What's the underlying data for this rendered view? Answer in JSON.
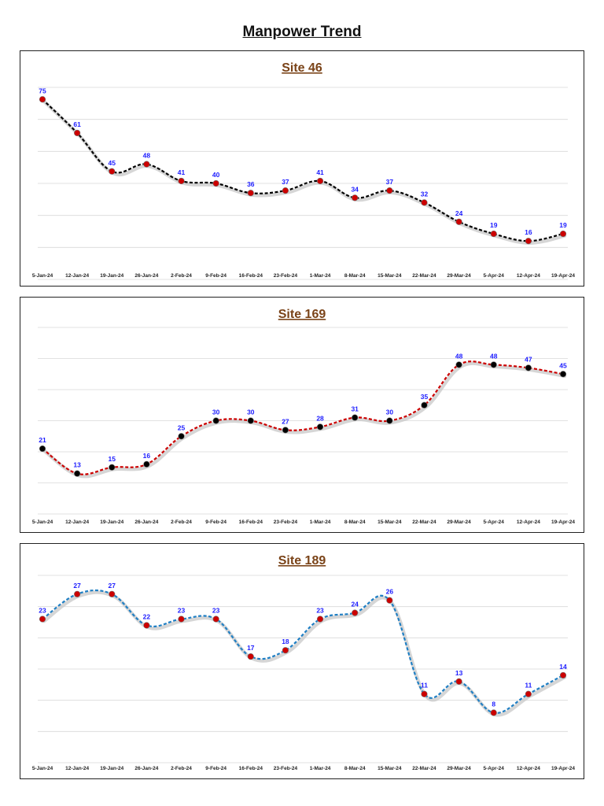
{
  "page": {
    "title": "Manpower Trend"
  },
  "chart_data": [
    {
      "type": "line",
      "title": "Site 46",
      "categories": [
        "5-Jan-24",
        "12-Jan-24",
        "19-Jan-24",
        "26-Jan-24",
        "2-Feb-24",
        "9-Feb-24",
        "16-Feb-24",
        "23-Feb-24",
        "1-Mar-24",
        "8-Mar-24",
        "15-Mar-24",
        "22-Mar-24",
        "29-Mar-24",
        "5-Apr-24",
        "12-Apr-24",
        "19-Apr-24"
      ],
      "series": [
        {
          "values": [
            75,
            61,
            45,
            48,
            41,
            40,
            36,
            37,
            41,
            34,
            37,
            32,
            24,
            19,
            16,
            19
          ]
        }
      ],
      "ylim": [
        0,
        80
      ],
      "grid": true,
      "line_color": "#000000",
      "marker_color": "#cc0000"
    },
    {
      "type": "line",
      "title": "Site 169",
      "categories": [
        "5-Jan-24",
        "12-Jan-24",
        "19-Jan-24",
        "26-Jan-24",
        "2-Feb-24",
        "9-Feb-24",
        "16-Feb-24",
        "23-Feb-24",
        "1-Mar-24",
        "8-Mar-24",
        "15-Mar-24",
        "22-Mar-24",
        "29-Mar-24",
        "5-Apr-24",
        "12-Apr-24",
        "19-Apr-24"
      ],
      "series": [
        {
          "values": [
            21,
            13,
            15,
            16,
            25,
            30,
            30,
            27,
            28,
            31,
            30,
            35,
            48,
            48,
            47,
            45
          ]
        }
      ],
      "ylim": [
        0,
        60
      ],
      "grid": true,
      "line_color": "#cc0000",
      "marker_color": "#000000"
    },
    {
      "type": "line",
      "title": "Site 189",
      "categories": [
        "5-Jan-24",
        "12-Jan-24",
        "19-Jan-24",
        "26-Jan-24",
        "2-Feb-24",
        "9-Feb-24",
        "16-Feb-24",
        "23-Feb-24",
        "1-Mar-24",
        "8-Mar-24",
        "15-Mar-24",
        "22-Mar-24",
        "29-Mar-24",
        "5-Apr-24",
        "12-Apr-24",
        "19-Apr-24"
      ],
      "series": [
        {
          "values": [
            23,
            27,
            27,
            22,
            23,
            23,
            17,
            18,
            23,
            24,
            26,
            11,
            13,
            8,
            11,
            14
          ]
        }
      ],
      "ylim": [
        0,
        30
      ],
      "grid": true,
      "line_color": "#1f7fc4",
      "marker_color": "#cc0000"
    }
  ]
}
